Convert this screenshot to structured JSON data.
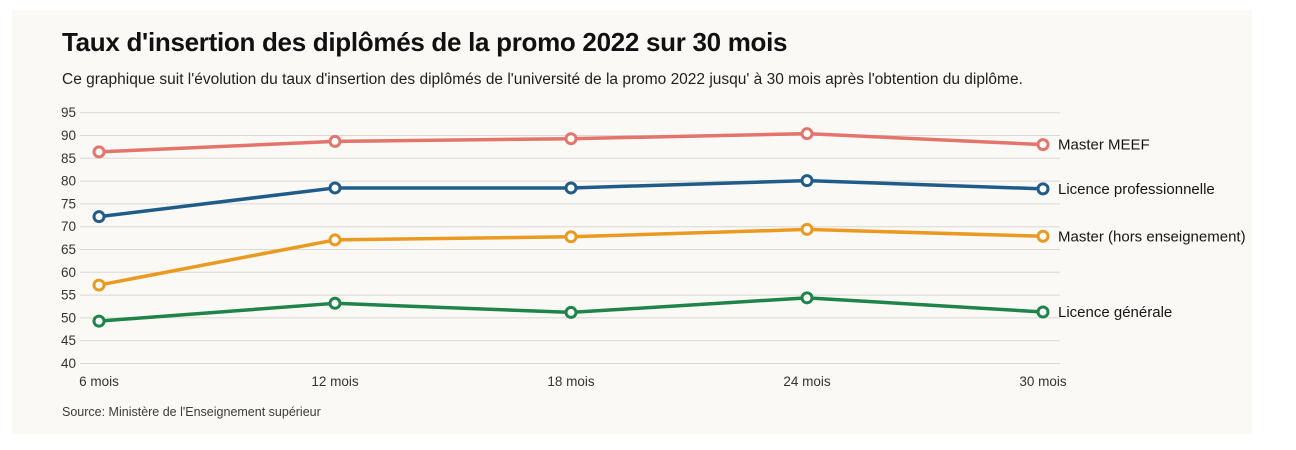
{
  "chart_data": {
    "type": "line",
    "title": "Taux d'insertion des diplômés de la promo 2022 sur 30 mois",
    "subtitle": "Ce graphique suit l'évolution du taux d'insertion des diplômés de l'université de la promo 2022 jusqu' à 30 mois après l'obtention du diplôme.",
    "source": "Source: Ministère de l'Enseignement supérieur",
    "categories": [
      "6 mois",
      "12 mois",
      "18 mois",
      "24 mois",
      "30 mois"
    ],
    "series": [
      {
        "name": "Master MEEF",
        "color": "#e3756d",
        "values": [
          86.4,
          88.7,
          89.3,
          90.4,
          88.0
        ]
      },
      {
        "name": "Licence professionnelle",
        "color": "#1f5c8a",
        "values": [
          72.2,
          78.5,
          78.5,
          80.1,
          78.3
        ]
      },
      {
        "name": "Master (hors enseignement)",
        "color": "#ea9a21",
        "values": [
          57.2,
          67.1,
          67.8,
          69.4,
          67.9
        ]
      },
      {
        "name": "Licence générale",
        "color": "#1e8449",
        "values": [
          49.3,
          53.2,
          51.2,
          54.4,
          51.3
        ]
      }
    ],
    "xlabel": "",
    "ylabel": "",
    "ylim": [
      40,
      95
    ],
    "y_ticks": [
      40,
      45,
      50,
      55,
      60,
      65,
      70,
      75,
      80,
      85,
      90,
      95
    ],
    "grid": true,
    "legend_position": "right-of-line-ends"
  },
  "colors": {
    "grid": "#dcd8d2",
    "card_background": "#faf9f6",
    "marker_fill": "#ffffff"
  }
}
